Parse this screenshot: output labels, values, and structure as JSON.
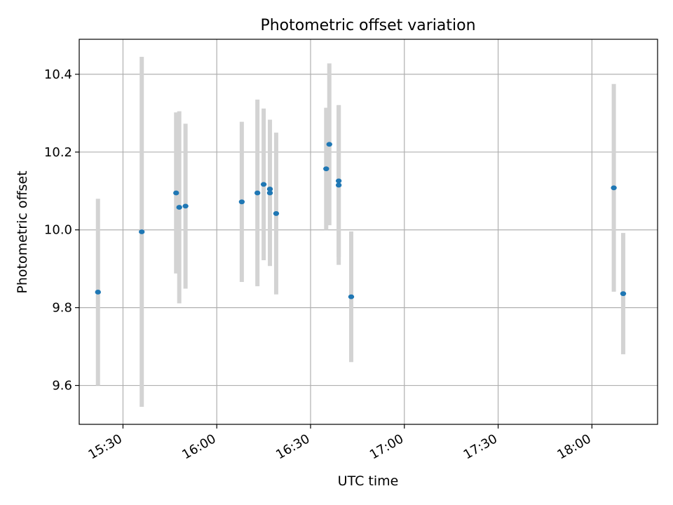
{
  "chart_data": {
    "type": "scatter",
    "title": "Photometric offset variation",
    "xlabel": "UTC time",
    "ylabel": "Photometric offset",
    "xlim": [
      "15:16",
      "18:21"
    ],
    "ylim": [
      9.5,
      10.49
    ],
    "x_ticks": [
      "15:30",
      "16:00",
      "16:30",
      "17:00",
      "17:30",
      "18:00"
    ],
    "y_ticks": [
      "9.6",
      "9.8",
      "10.0",
      "10.2",
      "10.4"
    ],
    "grid": true,
    "colors": {
      "point": "#1f77b4",
      "errorbar": "#d3d3d3",
      "grid": "#b0b0b0"
    },
    "points": [
      {
        "x": "15:22",
        "y": 9.84,
        "yerr": 0.24
      },
      {
        "x": "15:36",
        "y": 9.995,
        "yerr": 0.45
      },
      {
        "x": "15:47",
        "y": 10.095,
        "yerr": 0.207
      },
      {
        "x": "15:48",
        "y": 10.058,
        "yerr": 0.247
      },
      {
        "x": "15:50",
        "y": 10.061,
        "yerr": 0.212
      },
      {
        "x": "16:08",
        "y": 10.072,
        "yerr": 0.206
      },
      {
        "x": "16:13",
        "y": 10.095,
        "yerr": 0.24
      },
      {
        "x": "16:15",
        "y": 10.117,
        "yerr": 0.195
      },
      {
        "x": "16:17",
        "y": 10.105,
        "yerr": 0.178
      },
      {
        "x": "16:17",
        "y": 10.095,
        "yerr": 0.188
      },
      {
        "x": "16:19",
        "y": 10.042,
        "yerr": 0.208
      },
      {
        "x": "16:35",
        "y": 10.157,
        "yerr": 0.157
      },
      {
        "x": "16:36",
        "y": 10.22,
        "yerr": 0.208
      },
      {
        "x": "16:39",
        "y": 10.115,
        "yerr": 0.205
      },
      {
        "x": "16:39",
        "y": 10.126,
        "yerr": 0.195
      },
      {
        "x": "16:43",
        "y": 9.828,
        "yerr": 0.168
      },
      {
        "x": "18:07",
        "y": 10.108,
        "yerr": 0.267
      },
      {
        "x": "18:10",
        "y": 9.836,
        "yerr": 0.156
      }
    ]
  }
}
